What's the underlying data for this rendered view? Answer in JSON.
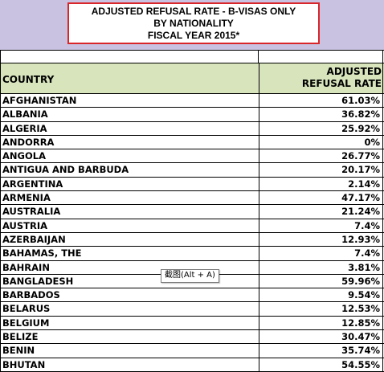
{
  "title": {
    "line1": "ADJUSTED REFUSAL RATE - B-VISAS ONLY",
    "line2": "BY NATIONALITY",
    "line3": "FISCAL YEAR 2015*"
  },
  "header": {
    "country": "COUNTRY",
    "rate_line1": "ADJUSTED",
    "rate_line2": "REFUSAL RATE"
  },
  "rows": [
    {
      "country": "AFGHANISTAN",
      "rate": "61.03%"
    },
    {
      "country": "ALBANIA",
      "rate": "36.82%"
    },
    {
      "country": "ALGERIA",
      "rate": "25.92%"
    },
    {
      "country": "ANDORRA",
      "rate": "0%"
    },
    {
      "country": "ANGOLA",
      "rate": "26.77%"
    },
    {
      "country": "ANTIGUA AND BARBUDA",
      "rate": "20.17%"
    },
    {
      "country": "ARGENTINA",
      "rate": "2.14%"
    },
    {
      "country": "ARMENIA",
      "rate": "47.17%"
    },
    {
      "country": "AUSTRALIA",
      "rate": "21.24%"
    },
    {
      "country": "AUSTRIA",
      "rate": "7.4%"
    },
    {
      "country": "AZERBAIJAN",
      "rate": "12.93%"
    },
    {
      "country": "BAHAMAS, THE",
      "rate": "7.4%"
    },
    {
      "country": "BAHRAIN",
      "rate": "3.81%"
    },
    {
      "country": "BANGLADESH",
      "rate": "59.96%"
    },
    {
      "country": "BARBADOS",
      "rate": "9.54%"
    },
    {
      "country": "BELARUS",
      "rate": "12.53%"
    },
    {
      "country": "BELGIUM",
      "rate": "12.85%"
    },
    {
      "country": "BELIZE",
      "rate": "30.47%"
    },
    {
      "country": "BENIN",
      "rate": "35.74%"
    },
    {
      "country": "BHUTAN",
      "rate": "54.55%"
    }
  ],
  "tooltip": "截图(Alt + A)",
  "colors": {
    "title_band": "#c9c2e0",
    "title_border": "#d9262a",
    "header_fill": "#d7e4bc"
  }
}
